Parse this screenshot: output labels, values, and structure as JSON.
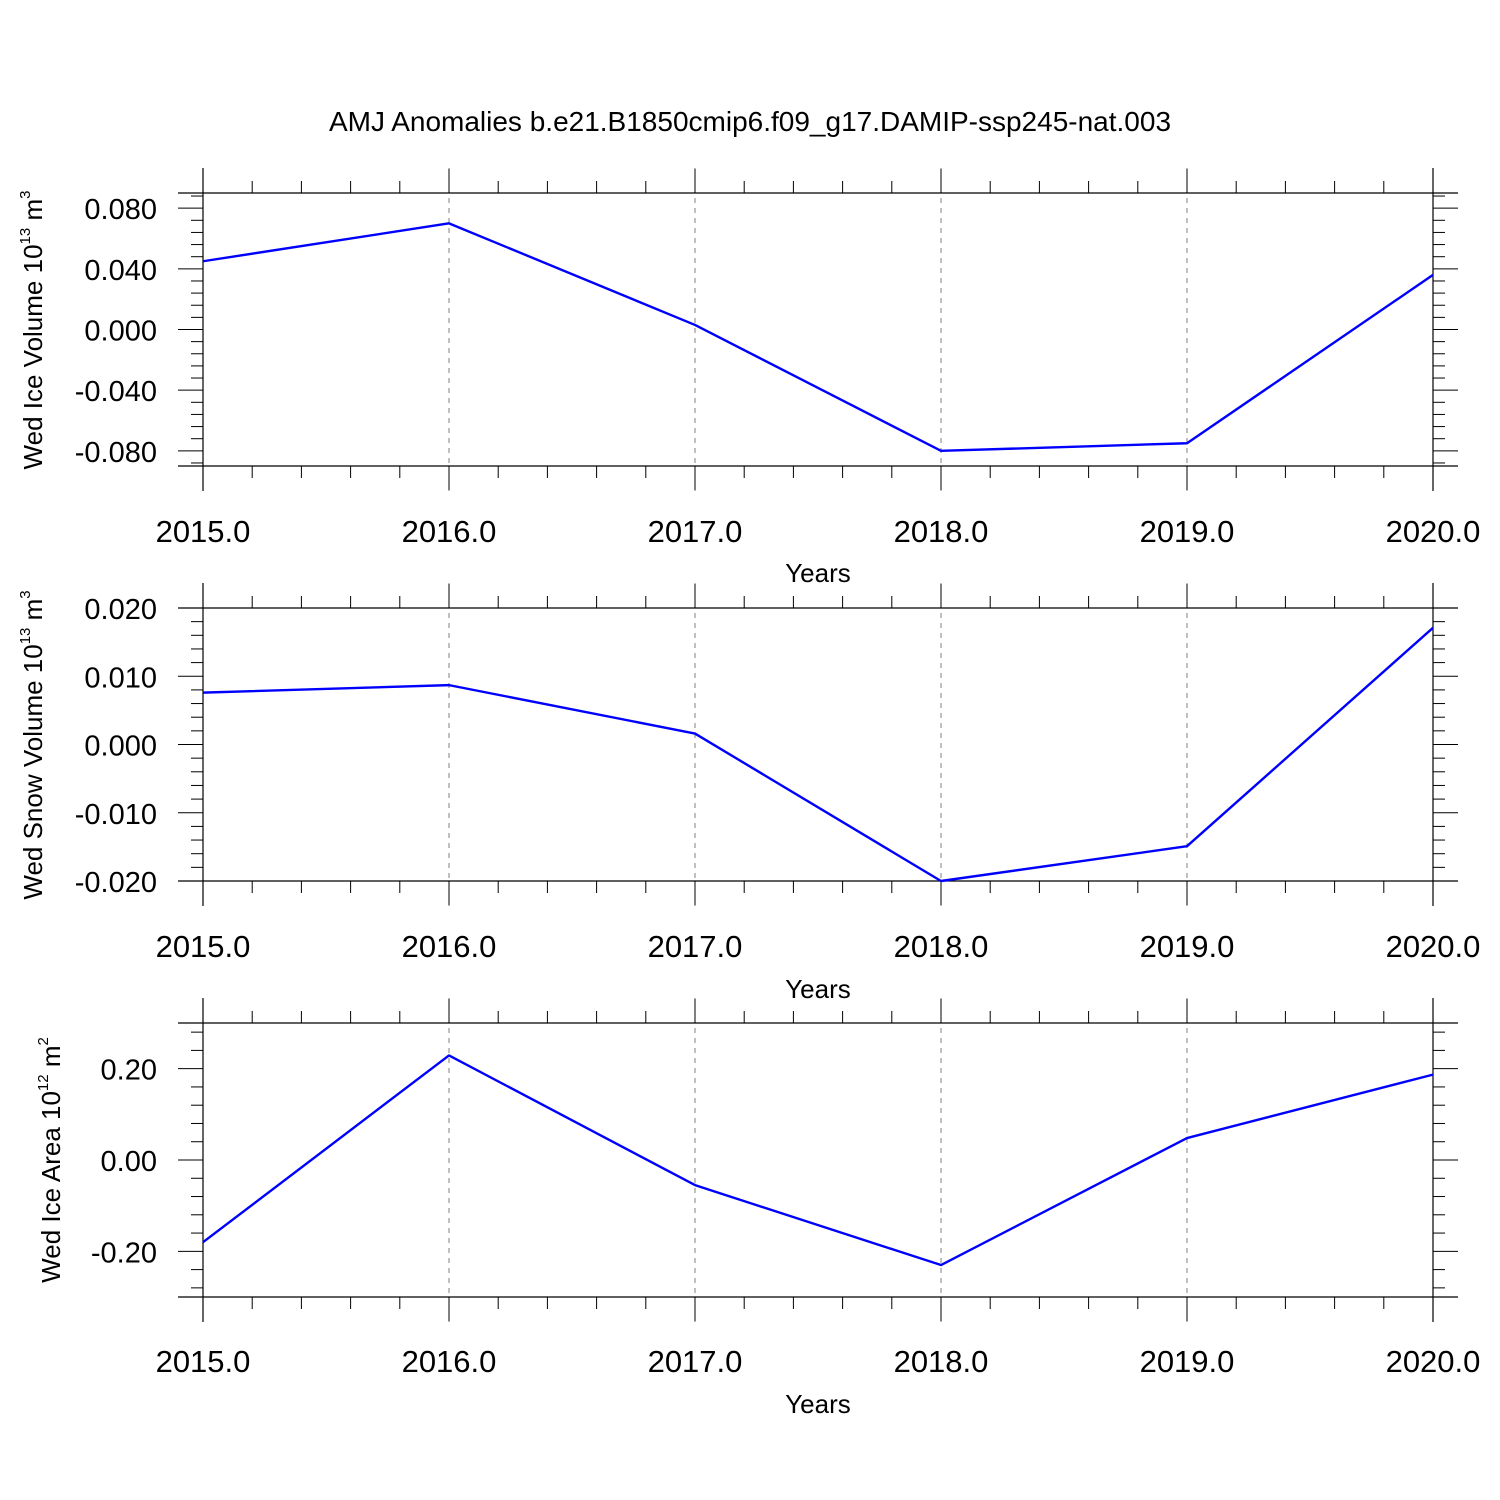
{
  "title": "AMJ Anomalies b.e21.B1850cmip6.f09_g17.DAMIP-ssp245-nat.003",
  "colors": {
    "line": "#0000ff",
    "axis": "#000000",
    "grid": "#808080"
  },
  "chart_data": [
    {
      "type": "line",
      "xlabel": "Years",
      "ylabel_text": "Wed Ice Volume 10",
      "ylabel_exp": "13",
      "ylabel_unit": " m",
      "ylabel_unit_exp": "3",
      "x": [
        2015,
        2016,
        2017,
        2018,
        2019,
        2020
      ],
      "xticks": [
        "2015.0",
        "2016.0",
        "2017.0",
        "2018.0",
        "2019.0",
        "2020.0"
      ],
      "yticks": [
        "0.080",
        "0.040",
        "0.000",
        "-0.040",
        "-0.080"
      ],
      "ytick_values": [
        0.08,
        0.04,
        0.0,
        -0.04,
        -0.08
      ],
      "ylim": [
        -0.09,
        0.09
      ],
      "series": [
        {
          "values": [
            0.045,
            0.07,
            0.003,
            -0.08,
            -0.075,
            0.036
          ]
        }
      ],
      "grid": "vertical dashed"
    },
    {
      "type": "line",
      "xlabel": "Years",
      "ylabel_text": "Wed Snow Volume 10",
      "ylabel_exp": "13",
      "ylabel_unit": " m",
      "ylabel_unit_exp": "3",
      "x": [
        2015,
        2016,
        2017,
        2018,
        2019,
        2020
      ],
      "xticks": [
        "2015.0",
        "2016.0",
        "2017.0",
        "2018.0",
        "2019.0",
        "2020.0"
      ],
      "yticks": [
        "0.020",
        "0.010",
        "0.000",
        "-0.010",
        "-0.020"
      ],
      "ytick_values": [
        0.02,
        0.01,
        0.0,
        -0.01,
        -0.02
      ],
      "ylim": [
        -0.02,
        0.02
      ],
      "series": [
        {
          "values": [
            0.0076,
            0.0087,
            0.0016,
            -0.02,
            -0.0149,
            0.0171
          ]
        }
      ],
      "grid": "vertical dashed"
    },
    {
      "type": "line",
      "xlabel": "Years",
      "ylabel_text": "Wed Ice Area 10",
      "ylabel_exp": "12",
      "ylabel_unit": " m",
      "ylabel_unit_exp": "2",
      "x": [
        2015,
        2016,
        2017,
        2018,
        2019,
        2020
      ],
      "xticks": [
        "2015.0",
        "2016.0",
        "2017.0",
        "2018.0",
        "2019.0",
        "2020.0"
      ],
      "yticks": [
        "0.20",
        "0.00",
        "-0.20"
      ],
      "ytick_values": [
        0.2,
        0.0,
        -0.2
      ],
      "ylim": [
        -0.3,
        0.3
      ],
      "series": [
        {
          "values": [
            -0.18,
            0.229,
            -0.055,
            -0.23,
            0.048,
            0.187
          ]
        }
      ],
      "grid": "vertical dashed"
    }
  ]
}
